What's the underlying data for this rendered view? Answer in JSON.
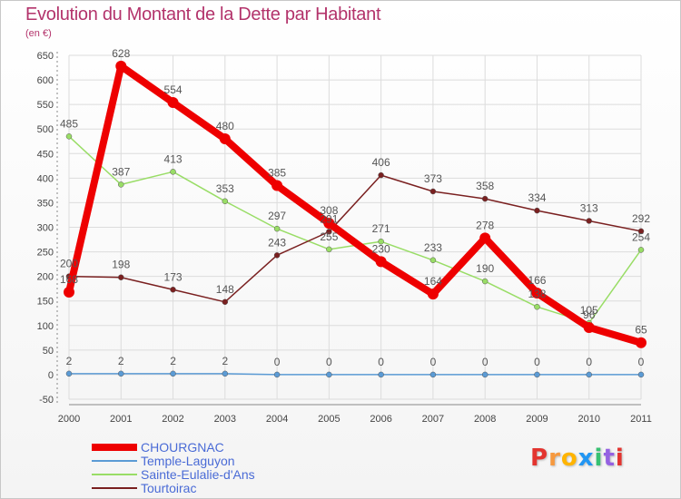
{
  "colors": {
    "title": "#b3336b",
    "grid": "#dcdcdc",
    "axis_text": "#444444",
    "label_text": "#555555",
    "legend_text": "#4a6bd6"
  },
  "chart_data": {
    "type": "line",
    "title": "Evolution du Montant de la Dette par Habitant",
    "unit": "(en €)",
    "xlabel": "",
    "ylabel": "",
    "ylim": [
      -50,
      650
    ],
    "yticks": [
      -50,
      0,
      50,
      100,
      150,
      200,
      250,
      300,
      350,
      400,
      450,
      500,
      550,
      600,
      650
    ],
    "x": [
      "2000",
      "2001",
      "2002",
      "2003",
      "2004",
      "2005",
      "2006",
      "2007",
      "2008",
      "2009",
      "2010",
      "2011"
    ],
    "grid": true,
    "legend_position": "bottom-left",
    "series": [
      {
        "name": "CHOURGNAC",
        "color": "#ee0000",
        "values": [
          168,
          628,
          554,
          480,
          385,
          308,
          230,
          164,
          278,
          166,
          96,
          65
        ]
      },
      {
        "name": "Temple-Laguyon",
        "color": "#5b9bd5",
        "values": [
          2,
          2,
          2,
          2,
          0,
          0,
          0,
          0,
          0,
          0,
          0,
          0
        ]
      },
      {
        "name": "Sainte-Eulalie-d'Ans",
        "color": "#99dd66",
        "values": [
          485,
          387,
          413,
          353,
          297,
          255,
          271,
          233,
          190,
          138,
          105,
          254
        ]
      },
      {
        "name": "Tourtoirac",
        "color": "#7a2020",
        "values": [
          200,
          198,
          173,
          148,
          243,
          291,
          406,
          373,
          358,
          334,
          313,
          292
        ]
      }
    ]
  },
  "logo": {
    "text": "Proxiti",
    "letter_colors": [
      "#e3342f",
      "#f6993f",
      "#ffb400",
      "#2196f3",
      "#38c172",
      "#9561e2",
      "#e3342f"
    ]
  }
}
